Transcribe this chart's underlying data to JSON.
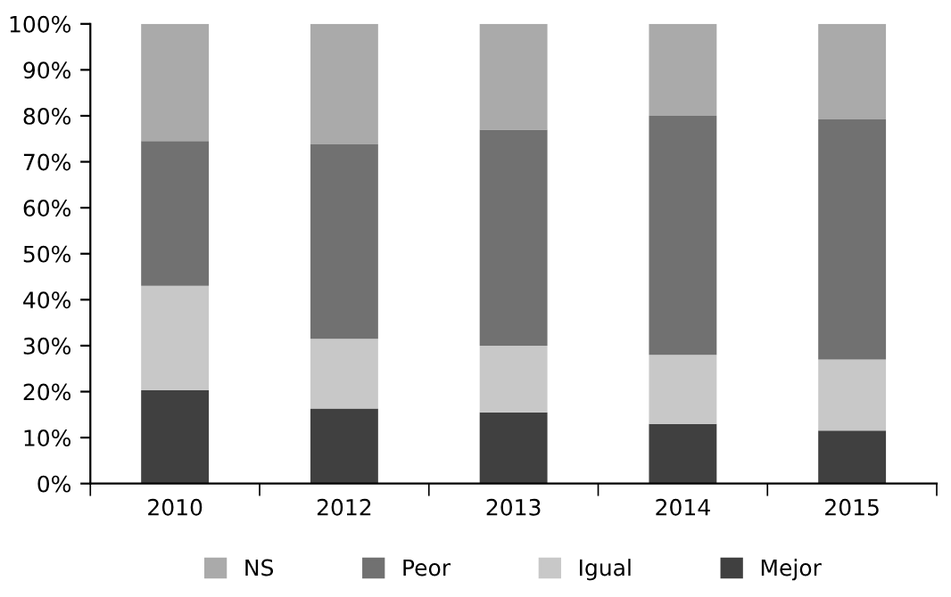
{
  "chart_data": {
    "type": "bar",
    "stacked": true,
    "categories": [
      "2010",
      "2012",
      "2013",
      "2014",
      "2015"
    ],
    "series": [
      {
        "name": "Mejor",
        "color": "#404040",
        "values": [
          20.3,
          16.3,
          15.5,
          13,
          11.5
        ]
      },
      {
        "name": "Igual",
        "color": "#c8c8c8",
        "values": [
          22.7,
          15.2,
          14.5,
          15,
          15.5
        ]
      },
      {
        "name": "Peor",
        "color": "#717171",
        "values": [
          31.5,
          42.3,
          47,
          52,
          52.2
        ]
      },
      {
        "name": "NS",
        "color": "#aaaaaa",
        "values": [
          25.5,
          26.2,
          23,
          20,
          20.8
        ]
      }
    ],
    "ylim": [
      0,
      100
    ],
    "yticks": [
      {
        "value": 0,
        "label": "0%"
      },
      {
        "value": 10,
        "label": "10%"
      },
      {
        "value": 20,
        "label": "20%"
      },
      {
        "value": 30,
        "label": "30%"
      },
      {
        "value": 40,
        "label": "40%"
      },
      {
        "value": 50,
        "label": "50%"
      },
      {
        "value": 60,
        "label": "60%"
      },
      {
        "value": 70,
        "label": "70%"
      },
      {
        "value": 80,
        "label": "80%"
      },
      {
        "value": 90,
        "label": "90%"
      },
      {
        "value": 100,
        "label": "100%"
      }
    ],
    "grid": false,
    "legend": "bottom"
  }
}
